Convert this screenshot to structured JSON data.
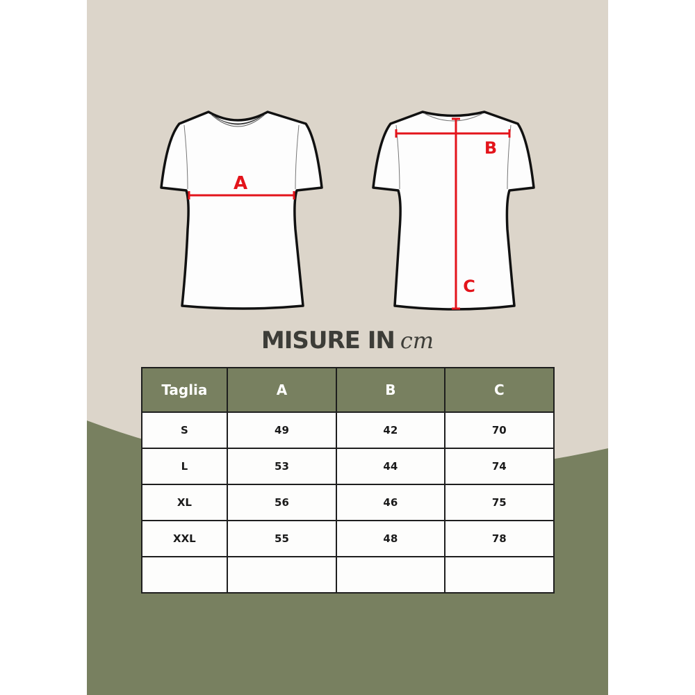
{
  "colors": {
    "beige": "#dcd5ca",
    "green": "#788060",
    "measure_red": "#e3141b"
  },
  "diagram": {
    "front_label": "A",
    "back_width_label": "B",
    "back_length_label": "C"
  },
  "title": {
    "text": "MISURE IN",
    "unit": "cm"
  },
  "table": {
    "headers": [
      "Taglia",
      "A",
      "B",
      "C"
    ],
    "rows": [
      [
        "S",
        "49",
        "42",
        "70"
      ],
      [
        "L",
        "53",
        "44",
        "74"
      ],
      [
        "XL",
        "56",
        "46",
        "75"
      ],
      [
        "XXL",
        "55",
        "48",
        "78"
      ],
      [
        "",
        "",
        "",
        ""
      ]
    ]
  }
}
